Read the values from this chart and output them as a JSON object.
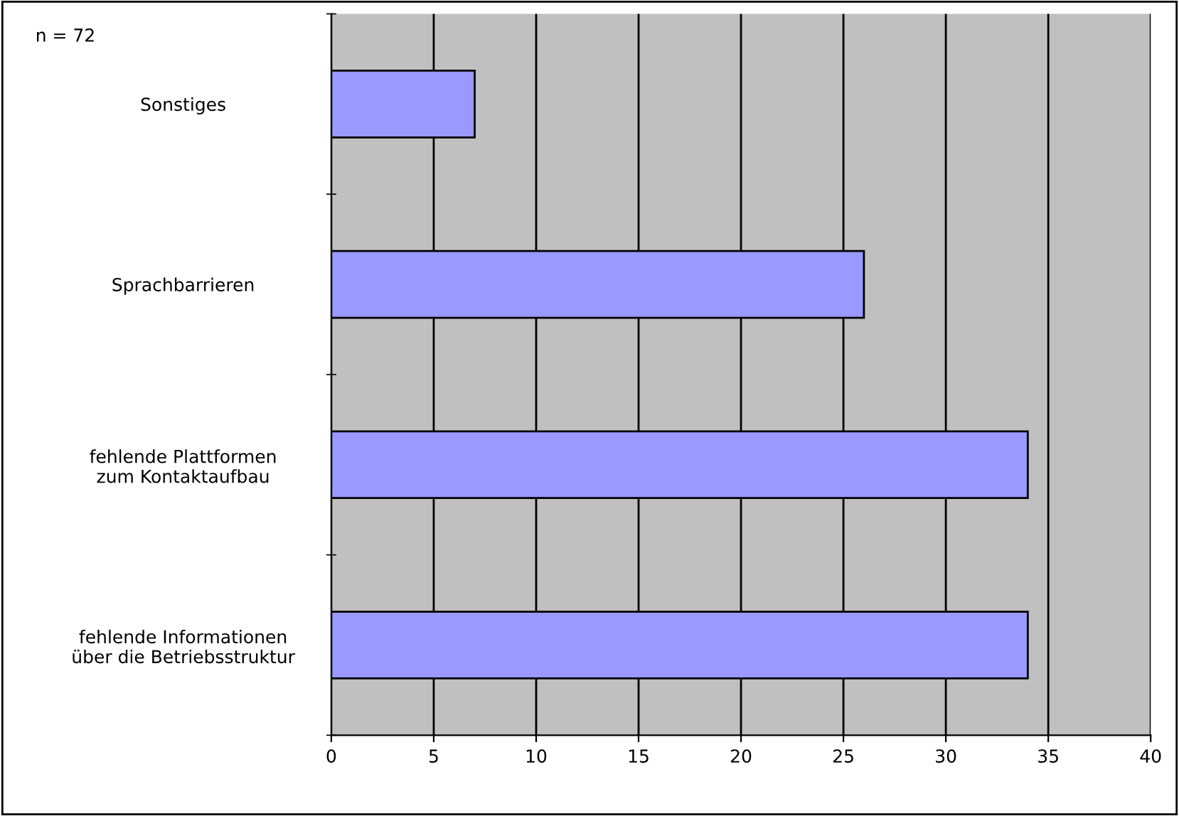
{
  "chart_data": {
    "type": "bar",
    "orientation": "horizontal",
    "categories": [
      "Sonstiges",
      "Sprachbarrieren",
      "fehlende Plattformen\nzum Kontaktaufbau",
      "fehlende Informationen\nüber die Betriebsstruktur"
    ],
    "values": [
      7,
      26,
      34,
      34
    ],
    "color": "#9999ff",
    "xlim": [
      0,
      40
    ],
    "xticks": [
      0,
      5,
      10,
      15,
      20,
      25,
      30,
      35,
      40
    ],
    "grid": "x",
    "annotations": [
      "n = 72"
    ]
  }
}
